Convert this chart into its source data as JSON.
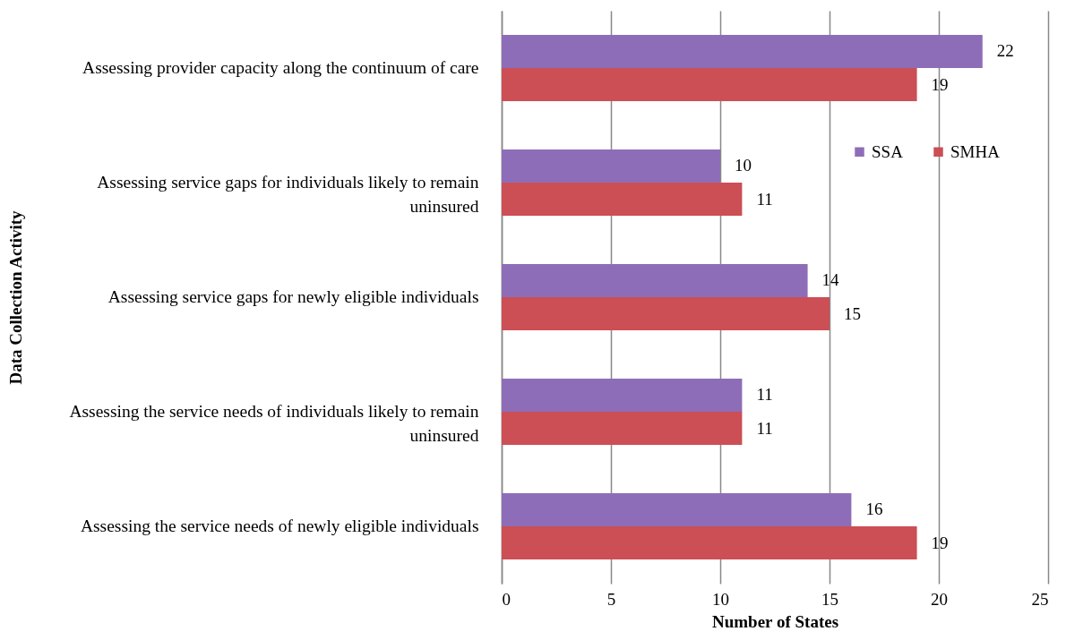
{
  "chart_data": {
    "type": "bar",
    "orientation": "horizontal",
    "xlabel": "Number of States",
    "ylabel": "Data Collection Activity",
    "categories": [
      "Assessing provider capacity along the continuum of care",
      "Assessing service gaps for individuals likely to remain uninsured",
      "Assessing service gaps for newly eligible individuals",
      "Assessing the service needs of individuals likely to remain uninsured",
      "Assessing the service needs of newly eligible individuals"
    ],
    "series": [
      {
        "name": "SSA",
        "color": "#8e6db8",
        "values": [
          22,
          10,
          14,
          11,
          16
        ]
      },
      {
        "name": "SMHA",
        "color": "#cb4f55",
        "values": [
          19,
          11,
          15,
          11,
          19
        ]
      }
    ],
    "xlim": [
      0,
      25
    ],
    "xticks": [
      0,
      5,
      10,
      15,
      20,
      25
    ],
    "grid": "x",
    "legend": "top right",
    "data_labels": true
  }
}
